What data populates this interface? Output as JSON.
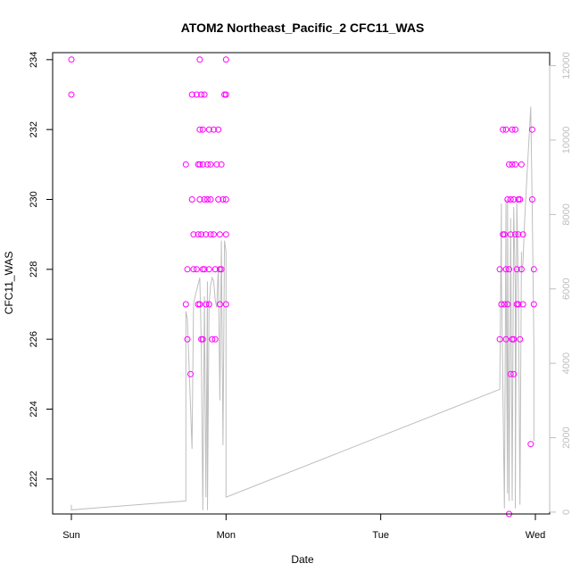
{
  "chart_data": {
    "type": "scatter",
    "title": "ATOM2 Northeast_Pacific_2 CFC11_WAS",
    "xlabel": "Date",
    "ylabel": "CFC11_WAS",
    "x_ticks": [
      "Sun",
      "Mon",
      "Tue",
      "Wed"
    ],
    "x_range_days": [
      0,
      3
    ],
    "ylim": [
      221,
      234.2
    ],
    "y_ticks": [
      222,
      224,
      226,
      228,
      230,
      232,
      234
    ],
    "y2_ticks": [
      0,
      2000,
      4000,
      6000,
      8000,
      10000,
      12000
    ],
    "y2lim": [
      -50,
      12350
    ],
    "grid": false,
    "legend": "none",
    "colors": {
      "points": "#ff00ff",
      "line": "#bebebe",
      "right_axis": "#bebebe"
    },
    "series": [
      {
        "kind": "points",
        "x_days": [
          0.0,
          0.0,
          0.74,
          0.74,
          0.75,
          0.75,
          0.77,
          0.78,
          0.78,
          0.79,
          0.79,
          0.81,
          0.81,
          0.82,
          0.82,
          0.82,
          0.83,
          0.83,
          0.83,
          0.83,
          0.83,
          0.84,
          0.84,
          0.84,
          0.85,
          0.85,
          0.85,
          0.85,
          0.86,
          0.86,
          0.86,
          0.87,
          0.87,
          0.88,
          0.88,
          0.89,
          0.89,
          0.89,
          0.9,
          0.9,
          0.9,
          0.91,
          0.92,
          0.92,
          0.93,
          0.93,
          0.94,
          0.95,
          0.95,
          0.96,
          0.96,
          0.96,
          0.97,
          0.97,
          0.98,
          0.99,
          1.0,
          1.0,
          1.0,
          1.0,
          1.0,
          2.77,
          2.77,
          2.78,
          2.79,
          2.79,
          2.8,
          2.8,
          2.81,
          2.81,
          2.81,
          2.82,
          2.82,
          2.83,
          2.83,
          2.83,
          2.84,
          2.84,
          2.84,
          2.85,
          2.85,
          2.85,
          2.86,
          2.86,
          2.86,
          2.87,
          2.87,
          2.87,
          2.88,
          2.88,
          2.89,
          2.89,
          2.89,
          2.9,
          2.9,
          2.91,
          2.91,
          2.92,
          2.92,
          2.97,
          2.98,
          2.98,
          2.99,
          2.99
        ],
        "y": [
          234,
          233,
          231,
          227,
          228,
          226,
          225,
          233,
          230,
          229,
          228,
          233,
          228,
          231,
          227,
          229,
          232,
          234,
          230,
          227,
          231,
          233,
          229,
          226,
          228,
          232,
          231,
          226,
          230,
          228,
          233,
          229,
          227,
          231,
          230,
          227,
          228,
          232,
          229,
          231,
          230,
          226,
          229,
          232,
          228,
          226,
          231,
          230,
          232,
          227,
          228,
          229,
          228,
          231,
          230,
          233,
          234,
          229,
          230,
          233,
          227,
          226,
          228,
          227,
          229,
          232,
          227,
          229,
          226,
          228,
          232,
          227,
          230,
          228,
          221,
          231,
          225,
          230,
          229,
          231,
          226,
          232,
          230,
          226,
          225,
          229,
          231,
          232,
          227,
          228,
          229,
          230,
          227,
          230,
          226,
          231,
          228,
          229,
          227,
          223,
          232,
          230,
          227,
          228
        ],
        "marker": "open-circle",
        "axis": "left"
      },
      {
        "kind": "line",
        "x_days": [
          0.0,
          0.0,
          0.74,
          0.74,
          0.75,
          0.78,
          0.79,
          0.8,
          0.83,
          0.84,
          0.85,
          0.86,
          0.86,
          0.87,
          0.88,
          0.88,
          0.89,
          0.9,
          0.91,
          0.92,
          0.93,
          0.94,
          0.95,
          0.96,
          0.97,
          0.98,
          0.99,
          1.0,
          1.0,
          2.77,
          2.78,
          2.78,
          2.8,
          2.81,
          2.81,
          2.82,
          2.82,
          2.83,
          2.84,
          2.85,
          2.86,
          2.87,
          2.87,
          2.88,
          2.89,
          2.9,
          2.91,
          2.91,
          2.92,
          2.93,
          2.94,
          2.97,
          2.98,
          2.99,
          2.99
        ],
        "y2": [
          200,
          60,
          300,
          5400,
          5200,
          1700,
          5600,
          5800,
          6300,
          4500,
          50,
          5800,
          5700,
          400,
          6200,
          50,
          5600,
          6100,
          6300,
          6200,
          5700,
          5500,
          6600,
          3000,
          7300,
          1800,
          7300,
          7000,
          400,
          3300,
          8300,
          6400,
          100,
          8400,
          6500,
          500,
          8400,
          300,
          7900,
          300,
          8200,
          6000,
          100,
          8400,
          6000,
          200,
          7000,
          6400,
          6700,
          7800,
          8600,
          10900,
          8100,
          4500,
          1900
        ],
        "axis": "right"
      }
    ]
  }
}
